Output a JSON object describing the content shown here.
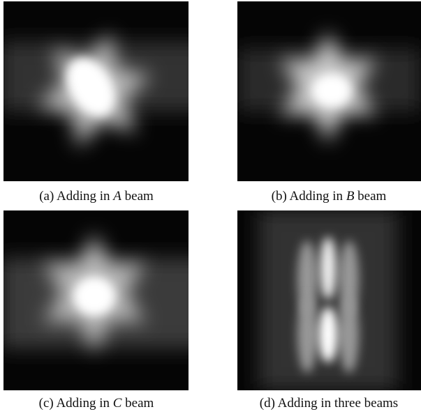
{
  "panels": [
    {
      "caption": [
        "(a) Adding in",
        "A",
        "beam"
      ]
    },
    {
      "caption": [
        "(b) Adding in",
        "B",
        "beam"
      ]
    },
    {
      "caption": [
        "(c) Adding in",
        "C",
        "beam"
      ]
    },
    {
      "caption": [
        "(d) Adding in three beams"
      ]
    }
  ]
}
